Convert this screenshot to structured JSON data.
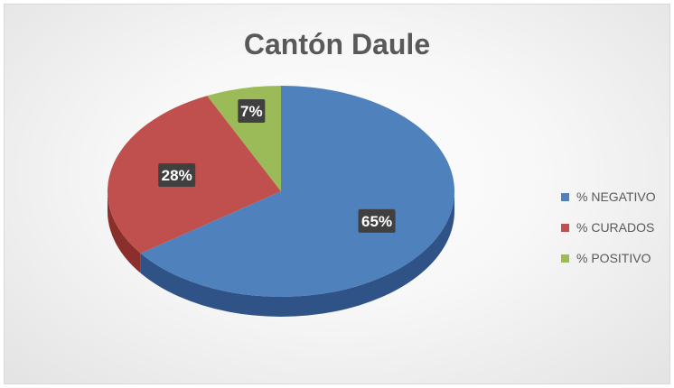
{
  "chart_data": {
    "type": "pie",
    "title": "Cantón Daule",
    "slices": [
      {
        "label": "% NEGATIVO",
        "value": 65,
        "data_label": "65%",
        "color": "#4f81bd",
        "side_color": "#2f5386"
      },
      {
        "label": "% CURADOS",
        "value": 28,
        "data_label": "28%",
        "color": "#c0504d",
        "side_color": "#8b2f2d"
      },
      {
        "label": "% POSITIVO",
        "value": 7,
        "data_label": "7%",
        "color": "#9bbb59",
        "side_color": "#6f8a3a"
      }
    ],
    "legend_position": "right",
    "style": "3d"
  }
}
